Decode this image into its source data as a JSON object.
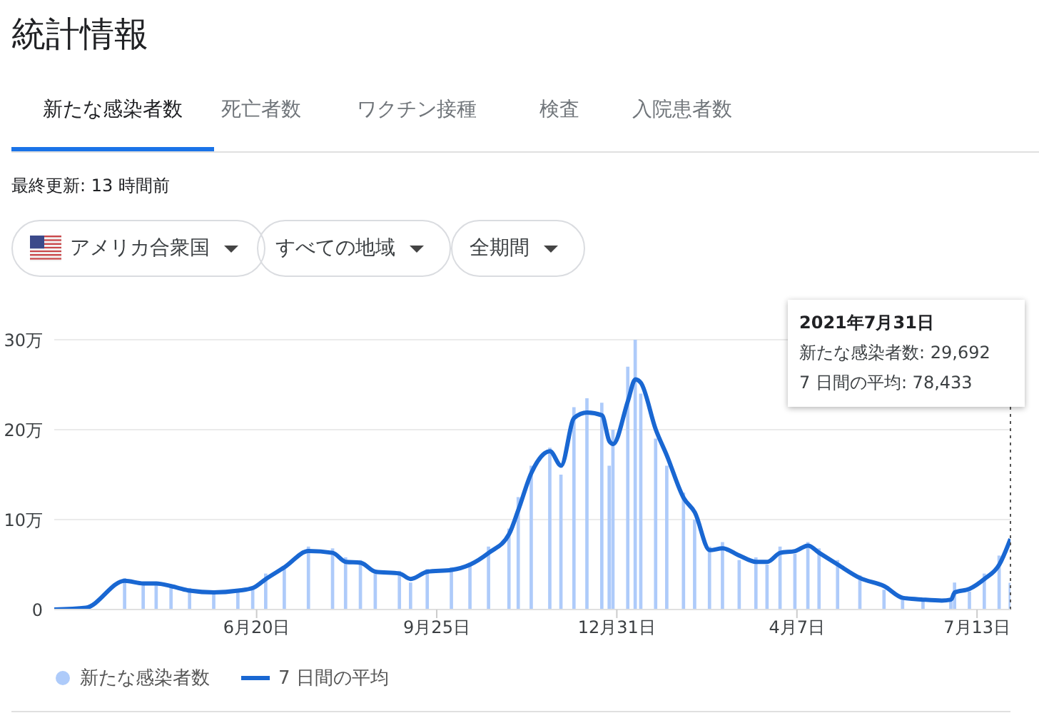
{
  "chart_data": {
    "type": "bar",
    "title": "統計情報",
    "annotations": [
      "新たな感染者数",
      "死亡者数",
      "ワクチン接種",
      "検査",
      "入院患者数",
      "最終更新: 13 時間前",
      "アメリカ合衆国",
      "すべての地域",
      "全期間",
      "2021年7月31日",
      "新たな感染者数: 29,692",
      "7 日間の平均: 78,433"
    ],
    "x": [
      "2020-03-03",
      "2020-03-20",
      "2020-04-10",
      "2020-04-20",
      "2020-04-27",
      "2020-05-05",
      "2020-05-15",
      "2020-05-28",
      "2020-06-10",
      "2020-06-18",
      "2020-06-25",
      "2020-07-05",
      "2020-07-18",
      "2020-07-31",
      "2020-08-07",
      "2020-08-15",
      "2020-08-23",
      "2020-09-05",
      "2020-09-11",
      "2020-09-20",
      "2020-10-03",
      "2020-10-13",
      "2020-10-23",
      "2020-11-03",
      "2020-11-08",
      "2020-11-15",
      "2020-11-25",
      "2020-12-01",
      "2020-12-08",
      "2020-12-15",
      "2020-12-23",
      "2020-12-27",
      "2020-12-29",
      "2021-01-06",
      "2021-01-10",
      "2021-01-13",
      "2021-01-21",
      "2021-01-27",
      "2021-02-05",
      "2021-02-11",
      "2021-02-19",
      "2021-02-26",
      "2021-03-07",
      "2021-03-16",
      "2021-03-22",
      "2021-03-29",
      "2021-04-06",
      "2021-04-13",
      "2021-04-19",
      "2021-04-29",
      "2021-05-11",
      "2021-05-24",
      "2021-06-03",
      "2021-06-14",
      "2021-06-24",
      "2021-06-29",
      "2021-07-01",
      "2021-07-09",
      "2021-07-17",
      "2021-07-25",
      "2021-07-31"
    ],
    "series": [
      {
        "name": "新たな感染者数",
        "color": "#aecbfa",
        "values": [
          0,
          null,
          3.5,
          2.7,
          3.1,
          2.5,
          2.4,
          1.8,
          2.2,
          2.6,
          4,
          4.5,
          7,
          6.8,
          5.8,
          5.5,
          4,
          4.3,
          3,
          4.5,
          4.7,
          5.2,
          7,
          9,
          12.5,
          16,
          18,
          15,
          22.5,
          23.5,
          23,
          16,
          20,
          27,
          30,
          24,
          19,
          16,
          13,
          10,
          7,
          7.5,
          5.5,
          5.8,
          5,
          7,
          6.2,
          7.5,
          6.8,
          5.5,
          3.8,
          2.2,
          1.5,
          1.2,
          null,
          0.9,
          3,
          2,
          4,
          6,
          2.9692
        ]
      },
      {
        "name": "7 日間の平均",
        "type": "line",
        "color": "#1967d2",
        "values": [
          0,
          0.2,
          3.2,
          2.9,
          2.9,
          2.6,
          2.1,
          1.9,
          2.1,
          2.4,
          3.4,
          4.7,
          6.5,
          6.3,
          5.3,
          5.2,
          4.2,
          4,
          3.4,
          4.2,
          4.4,
          5,
          6.3,
          8.4,
          11.1,
          15.2,
          17.6,
          16,
          21.3,
          21.9,
          21.6,
          18.7,
          18.4,
          23.2,
          25.6,
          25.2,
          20,
          17.1,
          12.4,
          10.8,
          6.6,
          6.8,
          6,
          5.3,
          5.3,
          6.3,
          6.5,
          7.1,
          6.3,
          5,
          3.5,
          2.6,
          1.3,
          1.1,
          1,
          1.1,
          1.9,
          2.3,
          3.4,
          5,
          7.8433
        ]
      }
    ],
    "xlim": [
      "2020-03-03",
      "2021-07-31"
    ],
    "xticks": [
      {
        "value": "2020-06-20",
        "label": "6月20日"
      },
      {
        "value": "2020-09-25",
        "label": "9月25日"
      },
      {
        "value": "2020-12-31",
        "label": "12月31日"
      },
      {
        "value": "2021-04-07",
        "label": "4月7日"
      },
      {
        "value": "2021-07-13",
        "label": "7月13日"
      }
    ],
    "ylim": [
      0,
      30
    ],
    "yticks": [
      0,
      {
        "value": 10,
        "label": "10万"
      },
      {
        "value": 20,
        "label": "20万"
      },
      {
        "value": 30,
        "label": "30万"
      }
    ],
    "ref_lines": [
      {
        "axis": "x",
        "value": "2021-07-31",
        "color": "#555555",
        "line_style": "dotted"
      }
    ],
    "grid": "y",
    "legend": "bottom left"
  }
}
